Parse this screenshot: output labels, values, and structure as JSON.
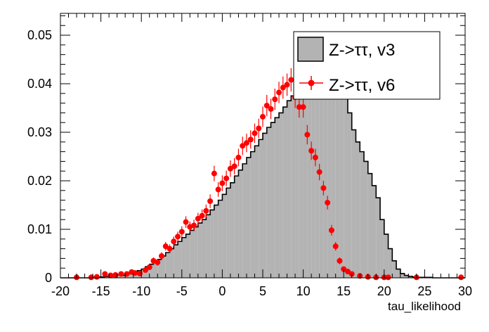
{
  "chart_data": {
    "type": "histogram",
    "title": "",
    "xlabel": "tau_likelihood",
    "ylabel": "",
    "xlim": [
      -20,
      30
    ],
    "ylim": [
      0,
      0.0545
    ],
    "x_ticks": [
      "-20",
      "-15",
      "-10",
      "-5",
      "0",
      "5",
      "10",
      "15",
      "20",
      "25",
      "30"
    ],
    "y_ticks": [
      "0",
      "0.01",
      "0.02",
      "0.03",
      "0.04",
      "0.05"
    ],
    "grid": false,
    "legend_position": "top-right",
    "series": [
      {
        "name": "Z->ττ, v3",
        "style": "filled-step-histogram",
        "fill_color": "#b3b3b3",
        "line_color": "#000000",
        "bin_edges_start": -20,
        "bin_width": 0.5,
        "values": [
          0,
          0,
          0,
          0,
          0,
          0,
          0,
          0,
          0,
          0.0002,
          0.0002,
          0.0003,
          0.0004,
          0.0003,
          0.0006,
          0.0005,
          0.0008,
          0.0009,
          0.0012,
          0.0015,
          0.0018,
          0.0023,
          0.0028,
          0.0032,
          0.0038,
          0.0045,
          0.0052,
          0.006,
          0.0068,
          0.0075,
          0.0083,
          0.009,
          0.0098,
          0.0105,
          0.0113,
          0.012,
          0.013,
          0.014,
          0.015,
          0.016,
          0.0172,
          0.0185,
          0.0196,
          0.021,
          0.0222,
          0.0235,
          0.0248,
          0.026,
          0.0272,
          0.0285,
          0.0298,
          0.031,
          0.032,
          0.033,
          0.034,
          0.0352,
          0.0365,
          0.0375,
          0.0385,
          0.0393,
          0.04,
          0.0408,
          0.0418,
          0.0425,
          0.0432,
          0.0455,
          0.0445,
          0.0428,
          0.0412,
          0.0395,
          0.037,
          0.034,
          0.0305,
          0.028,
          0.026,
          0.024,
          0.0215,
          0.019,
          0.0165,
          0.012,
          0.009,
          0.006,
          0.0035,
          0.0018,
          0.0009,
          0.0005,
          0.0003,
          0.0002,
          0.0001,
          0.0001,
          0.0001,
          0.0001,
          0,
          0,
          0,
          0,
          0,
          0,
          0,
          0
        ]
      },
      {
        "name": "Z->ττ, v6",
        "style": "points-with-errors",
        "color": "#ff0000",
        "points": [
          {
            "x": -18.0,
            "y": 0.0001,
            "err": 0.0002
          },
          {
            "x": -16.2,
            "y": 0.0001,
            "err": 0.0002
          },
          {
            "x": -15.5,
            "y": 0.0002,
            "err": 0.0003
          },
          {
            "x": -14.5,
            "y": 0.0008,
            "err": 0.0004
          },
          {
            "x": -13.8,
            "y": 0.0005,
            "err": 0.0004
          },
          {
            "x": -13.2,
            "y": 0.0006,
            "err": 0.0004
          },
          {
            "x": -12.5,
            "y": 0.0008,
            "err": 0.0004
          },
          {
            "x": -11.8,
            "y": 0.0008,
            "err": 0.0004
          },
          {
            "x": -11.2,
            "y": 0.0012,
            "err": 0.0005
          },
          {
            "x": -10.8,
            "y": 0.001,
            "err": 0.0005
          },
          {
            "x": -10.2,
            "y": 0.0009,
            "err": 0.0005
          },
          {
            "x": -9.5,
            "y": 0.0016,
            "err": 0.0005
          },
          {
            "x": -9.0,
            "y": 0.0022,
            "err": 0.0006
          },
          {
            "x": -8.5,
            "y": 0.0035,
            "err": 0.0007
          },
          {
            "x": -8.0,
            "y": 0.0032,
            "err": 0.0007
          },
          {
            "x": -7.5,
            "y": 0.0045,
            "err": 0.0008
          },
          {
            "x": -7.0,
            "y": 0.0065,
            "err": 0.0009
          },
          {
            "x": -6.5,
            "y": 0.006,
            "err": 0.0009
          },
          {
            "x": -6.0,
            "y": 0.0075,
            "err": 0.001
          },
          {
            "x": -5.5,
            "y": 0.0085,
            "err": 0.001
          },
          {
            "x": -5.0,
            "y": 0.0095,
            "err": 0.0011
          },
          {
            "x": -4.5,
            "y": 0.0115,
            "err": 0.0012
          },
          {
            "x": -4.0,
            "y": 0.0105,
            "err": 0.0011
          },
          {
            "x": -3.5,
            "y": 0.0108,
            "err": 0.0012
          },
          {
            "x": -3.0,
            "y": 0.0122,
            "err": 0.0012
          },
          {
            "x": -2.5,
            "y": 0.0128,
            "err": 0.0013
          },
          {
            "x": -2.0,
            "y": 0.0138,
            "err": 0.0013
          },
          {
            "x": -1.5,
            "y": 0.0158,
            "err": 0.0014
          },
          {
            "x": -1.0,
            "y": 0.0215,
            "err": 0.0016
          },
          {
            "x": -0.5,
            "y": 0.0182,
            "err": 0.0015
          },
          {
            "x": 0.0,
            "y": 0.0195,
            "err": 0.0016
          },
          {
            "x": 0.5,
            "y": 0.0205,
            "err": 0.0016
          },
          {
            "x": 1.0,
            "y": 0.0225,
            "err": 0.0017
          },
          {
            "x": 1.5,
            "y": 0.023,
            "err": 0.0017
          },
          {
            "x": 2.0,
            "y": 0.0248,
            "err": 0.0018
          },
          {
            "x": 2.5,
            "y": 0.0272,
            "err": 0.0019
          },
          {
            "x": 3.0,
            "y": 0.0278,
            "err": 0.0019
          },
          {
            "x": 3.5,
            "y": 0.0285,
            "err": 0.0019
          },
          {
            "x": 4.0,
            "y": 0.0298,
            "err": 0.002
          },
          {
            "x": 4.5,
            "y": 0.0308,
            "err": 0.002
          },
          {
            "x": 5.0,
            "y": 0.0332,
            "err": 0.0021
          },
          {
            "x": 5.5,
            "y": 0.0355,
            "err": 0.0022
          },
          {
            "x": 6.0,
            "y": 0.0348,
            "err": 0.0021
          },
          {
            "x": 6.5,
            "y": 0.0368,
            "err": 0.0022
          },
          {
            "x": 7.0,
            "y": 0.0382,
            "err": 0.0022
          },
          {
            "x": 7.5,
            "y": 0.0392,
            "err": 0.0023
          },
          {
            "x": 8.0,
            "y": 0.0398,
            "err": 0.0023
          },
          {
            "x": 8.5,
            "y": 0.0408,
            "err": 0.0024
          },
          {
            "x": 9.0,
            "y": 0.0372,
            "err": 0.0022
          },
          {
            "x": 9.5,
            "y": 0.0352,
            "err": 0.0022
          },
          {
            "x": 10.0,
            "y": 0.0352,
            "err": 0.0022
          },
          {
            "x": 10.5,
            "y": 0.0295,
            "err": 0.002
          },
          {
            "x": 11.0,
            "y": 0.0262,
            "err": 0.0019
          },
          {
            "x": 11.5,
            "y": 0.0248,
            "err": 0.0018
          },
          {
            "x": 12.0,
            "y": 0.0218,
            "err": 0.0017
          },
          {
            "x": 12.5,
            "y": 0.0185,
            "err": 0.0015
          },
          {
            "x": 13.0,
            "y": 0.0155,
            "err": 0.0014
          },
          {
            "x": 13.5,
            "y": 0.0098,
            "err": 0.0011
          },
          {
            "x": 14.0,
            "y": 0.0065,
            "err": 0.0009
          },
          {
            "x": 14.5,
            "y": 0.0035,
            "err": 0.0007
          },
          {
            "x": 15.0,
            "y": 0.0018,
            "err": 0.0005
          },
          {
            "x": 15.5,
            "y": 0.0013,
            "err": 0.0004
          },
          {
            "x": 16.0,
            "y": 0.0008,
            "err": 0.0004
          },
          {
            "x": 17.0,
            "y": 0.0004,
            "err": 0.0003
          },
          {
            "x": 18.0,
            "y": 0.0002,
            "err": 0.0002
          },
          {
            "x": 19.0,
            "y": 0.0001,
            "err": 0.0002
          },
          {
            "x": 20.0,
            "y": 0.0001,
            "err": 0.0002
          },
          {
            "x": 20.5,
            "y": 0.0001,
            "err": 0.0002
          },
          {
            "x": 24.0,
            "y": 0.0001,
            "err": 0.0002
          },
          {
            "x": 29.5,
            "y": 0.0001,
            "err": 0.0002
          }
        ]
      }
    ]
  }
}
